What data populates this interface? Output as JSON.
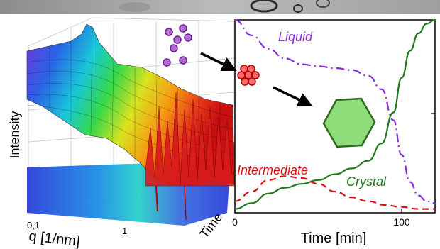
{
  "surface_plot": {
    "z_label": "Intensity",
    "x_label": "q [1/nm]",
    "x_ticks": [
      "0,1",
      "1"
    ],
    "y_label": "Time"
  },
  "transition": {
    "icons": [
      "molecule-cluster-icon",
      "arrow-icon",
      "nucleus-cluster-icon",
      "arrow-icon",
      "hexagon-crystal-icon"
    ],
    "colors": {
      "molecule": "#8e44ad",
      "nucleus": "#e03030",
      "crystal": "#8fdc7a"
    }
  },
  "chart_data": {
    "type": "line",
    "xlabel": "Time [min]",
    "ylabel": "",
    "xlim": [
      0,
      120
    ],
    "ylim": [
      0,
      1
    ],
    "x_ticks": [
      0,
      100
    ],
    "series": [
      {
        "name": "Liquid",
        "color": "#8a2be2",
        "dash": "dashdot",
        "x": [
          0,
          10,
          20,
          30,
          40,
          50,
          60,
          70,
          80,
          88,
          95,
          100,
          105,
          110,
          115,
          120
        ],
        "y": [
          1.0,
          0.92,
          0.85,
          0.8,
          0.77,
          0.76,
          0.75,
          0.74,
          0.71,
          0.64,
          0.48,
          0.3,
          0.16,
          0.09,
          0.06,
          0.05
        ]
      },
      {
        "name": "Crystal",
        "color": "#1f7a1f",
        "dash": "solid",
        "x": [
          0,
          10,
          20,
          30,
          40,
          50,
          60,
          70,
          80,
          88,
          95,
          100,
          105,
          110,
          115,
          120
        ],
        "y": [
          0.02,
          0.05,
          0.1,
          0.13,
          0.15,
          0.17,
          0.2,
          0.23,
          0.27,
          0.36,
          0.52,
          0.7,
          0.84,
          0.93,
          0.98,
          1.0
        ]
      },
      {
        "name": "Intermediate",
        "color": "#e01010",
        "dash": "dashed",
        "x": [
          0,
          10,
          20,
          30,
          40,
          50,
          60,
          70,
          80,
          90,
          100,
          110,
          120
        ],
        "y": [
          0.06,
          0.11,
          0.17,
          0.19,
          0.18,
          0.15,
          0.11,
          0.08,
          0.06,
          0.04,
          0.03,
          0.02,
          0.02
        ]
      }
    ]
  }
}
